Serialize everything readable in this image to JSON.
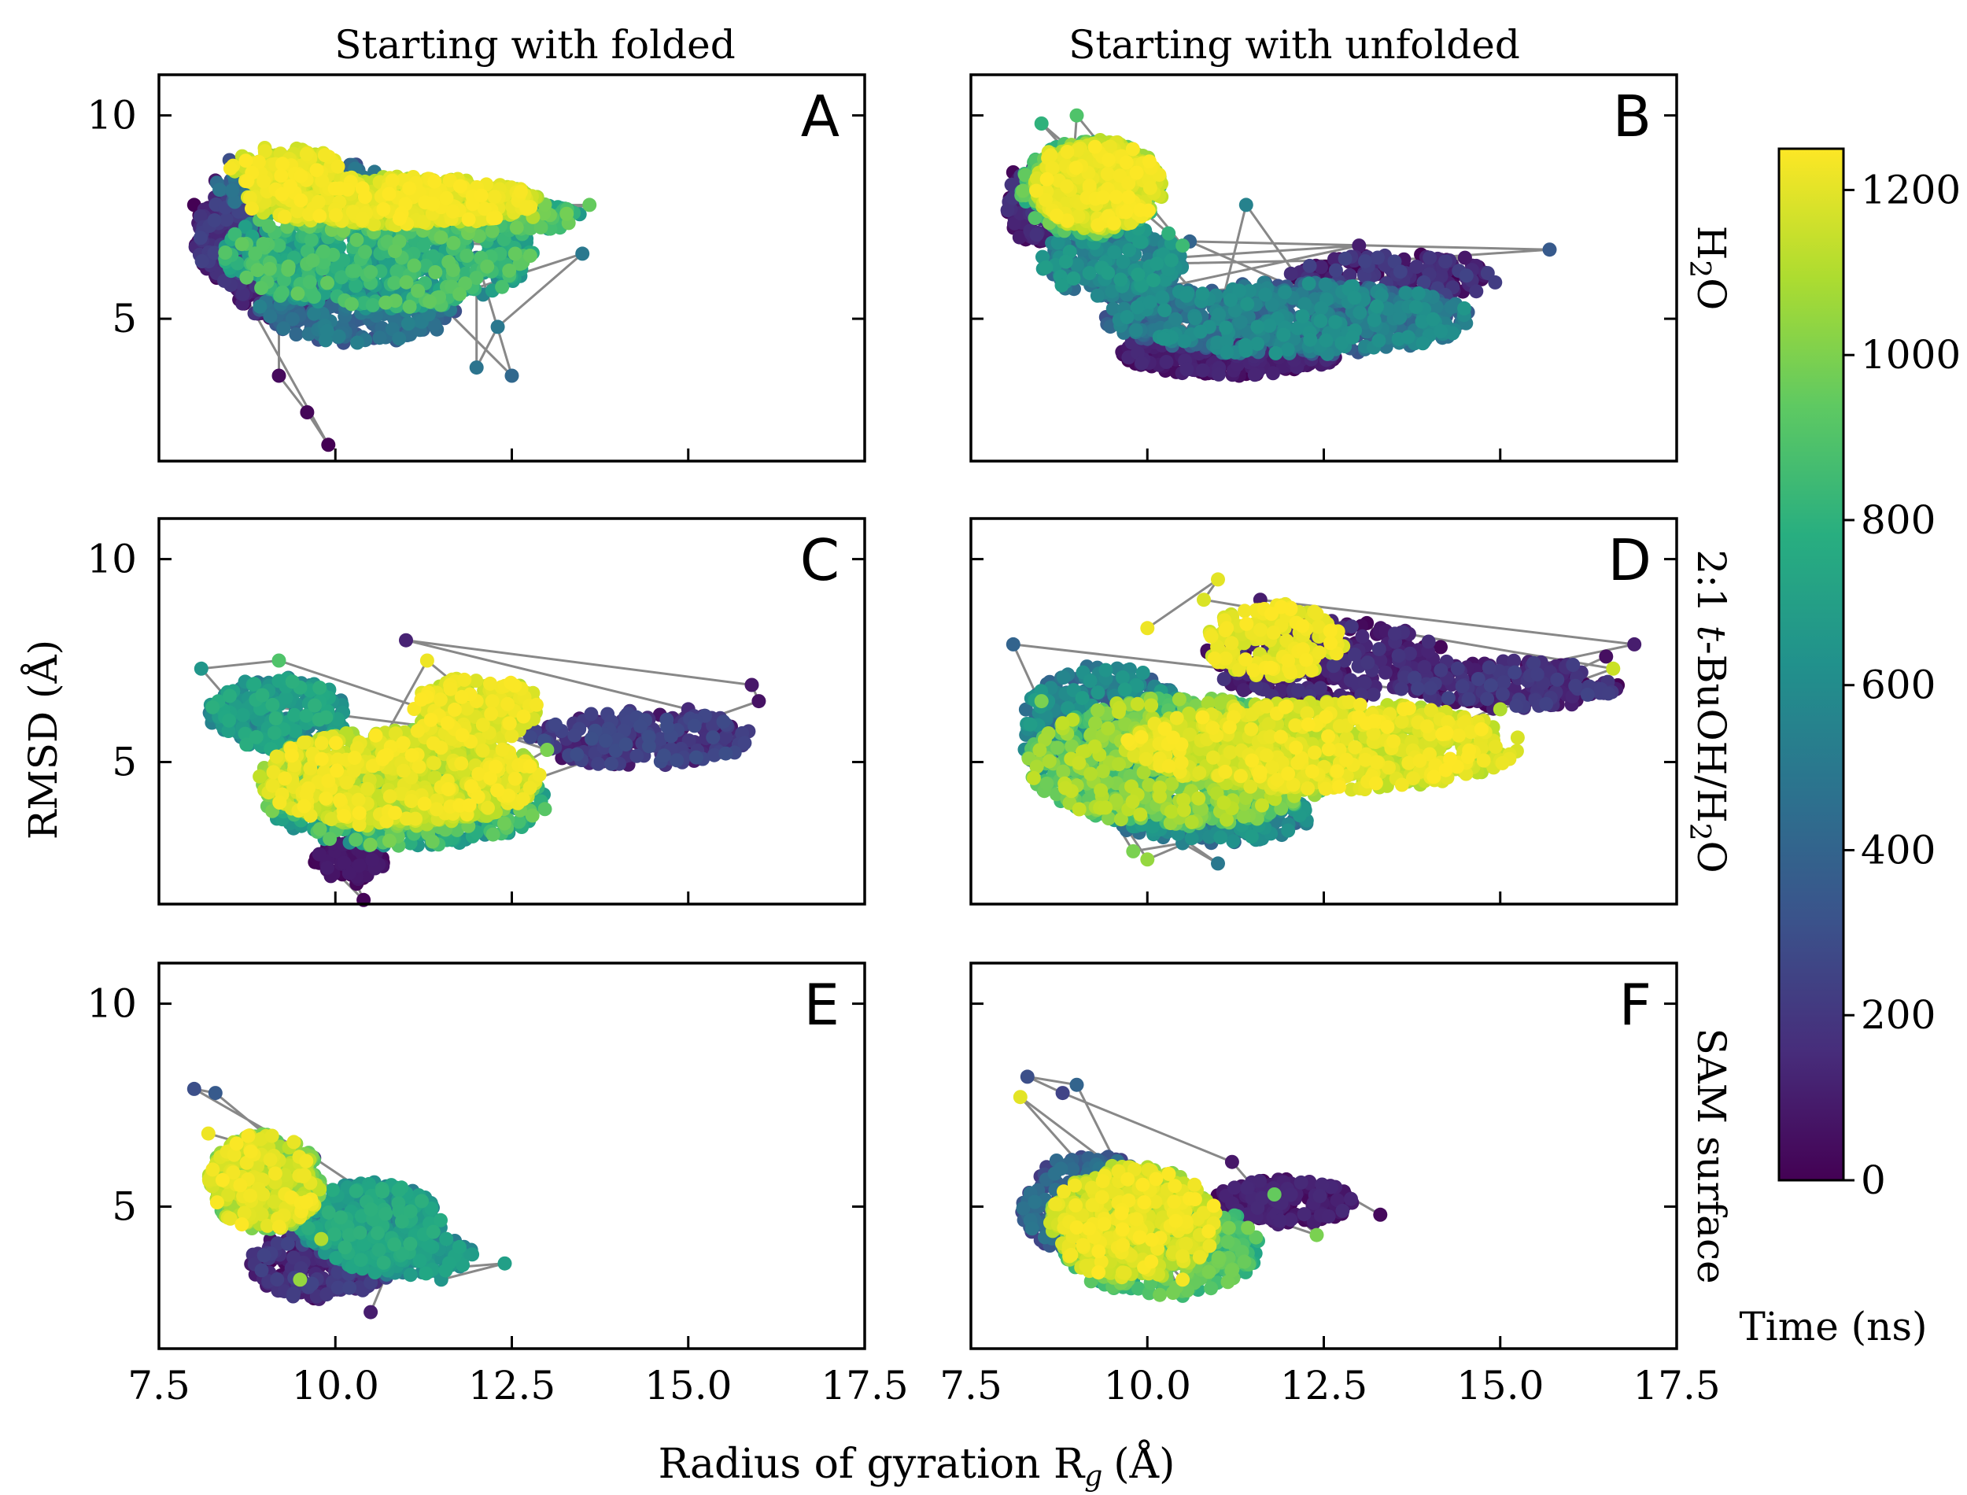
{
  "chart_data": {
    "type": "scatter",
    "xlabel": "Radius of gyration R",
    "xlabel_sub": "g",
    "xlabel_unit": "(Å)",
    "ylabel": "RMSD (Å)",
    "xlim": [
      7.5,
      17.5
    ],
    "ylim": [
      1.5,
      11
    ],
    "xticks": [
      7.5,
      10.0,
      12.5,
      15.0,
      17.5
    ],
    "xtick_labels": [
      "7.5",
      "10.0",
      "12.5",
      "15.0",
      "17.5"
    ],
    "yticks": [
      5,
      10
    ],
    "ytick_labels": [
      "5",
      "10"
    ],
    "column_titles": [
      "Starting with folded",
      "Starting with unfolded"
    ],
    "row_labels": [
      {
        "parts": [
          {
            "t": "H"
          },
          {
            "t": "2",
            "sub": true
          },
          {
            "t": "O"
          }
        ]
      },
      {
        "parts": [
          {
            "t": "2:1 "
          },
          {
            "t": "t",
            "italic": true
          },
          {
            "t": "-BuOH/H"
          },
          {
            "t": "2",
            "sub": true
          },
          {
            "t": "O"
          }
        ]
      },
      {
        "parts": [
          {
            "t": "SAM surface"
          }
        ]
      }
    ],
    "colorbar": {
      "label": "Time (ns)",
      "range": [
        0,
        1250
      ],
      "ticks": [
        0,
        200,
        400,
        600,
        800,
        1000,
        1200
      ],
      "tick_labels": [
        "0",
        "200",
        "400",
        "600",
        "800",
        "1000",
        "1200"
      ],
      "colormap": "viridis"
    },
    "panels": [
      {
        "letter": "A",
        "row": 0,
        "col": 0,
        "seed": 11,
        "points": [
          [
            8.0,
            7.8,
            0
          ],
          [
            8.3,
            8.4,
            80
          ],
          [
            8.6,
            6.8,
            60
          ],
          [
            9.2,
            6.4,
            40
          ],
          [
            9.6,
            5.3,
            120
          ],
          [
            9.2,
            3.6,
            30
          ],
          [
            9.6,
            2.7,
            20
          ],
          [
            9.9,
            1.9,
            0
          ],
          [
            8.5,
            8.9,
            300
          ],
          [
            9.5,
            8.8,
            350
          ],
          [
            11.0,
            8.2,
            300
          ],
          [
            12.0,
            6.5,
            450
          ],
          [
            12.3,
            4.8,
            500
          ],
          [
            12.0,
            3.8,
            480
          ],
          [
            12.5,
            3.6,
            420
          ],
          [
            13.5,
            6.6,
            500
          ],
          [
            11.0,
            5.2,
            550
          ],
          [
            9.0,
            6.5,
            650
          ],
          [
            10.0,
            7.0,
            700
          ],
          [
            11.5,
            7.0,
            750
          ],
          [
            12.5,
            6.8,
            700
          ],
          [
            13.0,
            7.6,
            850
          ],
          [
            13.6,
            7.8,
            950
          ],
          [
            9.0,
            7.7,
            1000
          ],
          [
            10.0,
            7.9,
            1100
          ],
          [
            11.0,
            7.7,
            1200
          ],
          [
            12.0,
            7.4,
            1200
          ],
          [
            9.0,
            9.2,
            1180
          ],
          [
            9.8,
            8.6,
            1230
          ],
          [
            12.8,
            7.5,
            1100
          ]
        ],
        "clusters": [
          {
            "cx": 8.5,
            "cy": 7.0,
            "rx": 0.5,
            "ry": 1.1,
            "t0": 0,
            "t1": 250,
            "n": 200
          },
          {
            "cx": 9.2,
            "cy": 5.9,
            "rx": 0.7,
            "ry": 0.9,
            "t0": 0,
            "t1": 200,
            "n": 160
          },
          {
            "cx": 10.3,
            "cy": 5.2,
            "rx": 1.4,
            "ry": 0.8,
            "t0": 300,
            "t1": 550,
            "n": 260
          },
          {
            "cx": 9.5,
            "cy": 8.3,
            "rx": 1.2,
            "ry": 0.7,
            "t0": 300,
            "t1": 500,
            "n": 200
          },
          {
            "cx": 10.6,
            "cy": 6.6,
            "rx": 2.2,
            "ry": 1.4,
            "t0": 550,
            "t1": 950,
            "n": 700
          },
          {
            "cx": 11.5,
            "cy": 7.5,
            "rx": 2.0,
            "ry": 0.5,
            "t0": 650,
            "t1": 1000,
            "n": 260
          },
          {
            "cx": 10.8,
            "cy": 7.9,
            "rx": 2.1,
            "ry": 0.6,
            "t0": 1080,
            "t1": 1250,
            "n": 620
          },
          {
            "cx": 9.3,
            "cy": 8.7,
            "rx": 0.8,
            "ry": 0.5,
            "t0": 1100,
            "t1": 1250,
            "n": 150
          }
        ]
      },
      {
        "letter": "B",
        "row": 0,
        "col": 1,
        "seed": 23,
        "points": [
          [
            8.1,
            8.6,
            20
          ],
          [
            8.3,
            7.2,
            60
          ],
          [
            8.6,
            6.3,
            100
          ],
          [
            9.5,
            5.5,
            150
          ],
          [
            10.4,
            4.0,
            80
          ],
          [
            11.3,
            3.6,
            50
          ],
          [
            12.3,
            3.9,
            70
          ],
          [
            14.0,
            6.5,
            200
          ],
          [
            14.6,
            6.2,
            150
          ],
          [
            15.7,
            6.7,
            350
          ],
          [
            13.0,
            6.8,
            100
          ],
          [
            14.5,
            6.5,
            80
          ],
          [
            10.6,
            6.9,
            400
          ],
          [
            11.4,
            7.8,
            550
          ],
          [
            12.3,
            5.6,
            450
          ],
          [
            11.0,
            5.0,
            600
          ],
          [
            8.5,
            9.8,
            800
          ],
          [
            9.0,
            10.0,
            900
          ],
          [
            10.3,
            7.1,
            800
          ],
          [
            10.5,
            6.8,
            850
          ],
          [
            9.0,
            8.5,
            1200
          ],
          [
            8.9,
            7.6,
            1100
          ],
          [
            9.5,
            9.0,
            1220
          ],
          [
            10.2,
            8.0,
            1130
          ],
          [
            8.6,
            9.1,
            1180
          ]
        ],
        "clusters": [
          {
            "cx": 8.4,
            "cy": 7.8,
            "rx": 0.4,
            "ry": 1.0,
            "t0": 0,
            "t1": 200,
            "n": 150
          },
          {
            "cx": 11.2,
            "cy": 4.2,
            "rx": 1.6,
            "ry": 0.6,
            "t0": 0,
            "t1": 150,
            "n": 280
          },
          {
            "cx": 13.5,
            "cy": 6.0,
            "rx": 1.5,
            "ry": 0.6,
            "t0": 0,
            "t1": 250,
            "n": 160
          },
          {
            "cx": 12.0,
            "cy": 5.0,
            "rx": 2.6,
            "ry": 0.9,
            "t0": 300,
            "t1": 650,
            "n": 700
          },
          {
            "cx": 9.5,
            "cy": 6.4,
            "rx": 1.0,
            "ry": 0.9,
            "t0": 400,
            "t1": 700,
            "n": 250
          },
          {
            "cx": 9.2,
            "cy": 8.2,
            "rx": 1.0,
            "ry": 1.2,
            "t0": 750,
            "t1": 1000,
            "n": 280
          },
          {
            "cx": 9.3,
            "cy": 8.3,
            "rx": 0.9,
            "ry": 1.1,
            "t0": 1050,
            "t1": 1250,
            "n": 520
          }
        ]
      },
      {
        "letter": "C",
        "row": 1,
        "col": 0,
        "seed": 37,
        "points": [
          [
            10.0,
            2.3,
            0
          ],
          [
            10.3,
            2.0,
            20
          ],
          [
            10.4,
            1.6,
            10
          ],
          [
            9.9,
            2.8,
            50
          ],
          [
            11.0,
            8.0,
            120
          ],
          [
            15.9,
            6.9,
            80
          ],
          [
            16.0,
            6.5,
            60
          ],
          [
            15.0,
            6.3,
            150
          ],
          [
            14.5,
            5.8,
            200
          ],
          [
            13.0,
            5.5,
            250
          ],
          [
            8.1,
            7.3,
            650
          ],
          [
            8.5,
            6.5,
            600
          ],
          [
            9.2,
            7.5,
            900
          ],
          [
            11.3,
            7.5,
            1220
          ],
          [
            12.8,
            6.7,
            1180
          ],
          [
            12.0,
            6.5,
            1240
          ],
          [
            10.5,
            5.0,
            1200
          ],
          [
            10.8,
            4.5,
            1150
          ],
          [
            12.5,
            4.8,
            1100
          ],
          [
            13.0,
            5.3,
            1000
          ]
        ],
        "clusters": [
          {
            "cx": 10.2,
            "cy": 2.6,
            "rx": 0.5,
            "ry": 0.5,
            "t0": 0,
            "t1": 100,
            "n": 120
          },
          {
            "cx": 14.3,
            "cy": 5.6,
            "rx": 1.6,
            "ry": 0.7,
            "t0": 50,
            "t1": 300,
            "n": 220
          },
          {
            "cx": 9.2,
            "cy": 6.2,
            "rx": 1.0,
            "ry": 0.9,
            "t0": 500,
            "t1": 800,
            "n": 260
          },
          {
            "cx": 11.0,
            "cy": 4.0,
            "rx": 2.0,
            "ry": 1.1,
            "t0": 600,
            "t1": 1000,
            "n": 500
          },
          {
            "cx": 10.9,
            "cy": 4.6,
            "rx": 2.0,
            "ry": 1.2,
            "t0": 1000,
            "t1": 1250,
            "n": 800
          },
          {
            "cx": 12.0,
            "cy": 6.3,
            "rx": 0.9,
            "ry": 0.8,
            "t0": 1100,
            "t1": 1250,
            "n": 200
          }
        ]
      },
      {
        "letter": "D",
        "row": 1,
        "col": 1,
        "seed": 53,
        "points": [
          [
            8.1,
            7.9,
            400
          ],
          [
            8.6,
            6.0,
            450
          ],
          [
            9.1,
            4.8,
            500
          ],
          [
            10.5,
            3.0,
            550
          ],
          [
            11.0,
            2.5,
            500
          ],
          [
            11.6,
            9.0,
            100
          ],
          [
            12.0,
            8.5,
            80
          ],
          [
            16.5,
            7.6,
            50
          ],
          [
            16.9,
            7.9,
            100
          ],
          [
            15.0,
            7.2,
            120
          ],
          [
            13.6,
            6.8,
            200
          ],
          [
            14.5,
            6.0,
            60
          ],
          [
            11.0,
            9.5,
            1200
          ],
          [
            10.8,
            9.0,
            1180
          ],
          [
            10.0,
            8.3,
            1220
          ],
          [
            16.6,
            7.3,
            1150
          ],
          [
            15.0,
            6.3,
            1100
          ],
          [
            10.0,
            2.6,
            1050
          ],
          [
            9.8,
            2.8,
            1000
          ],
          [
            8.5,
            6.5,
            1000
          ]
        ],
        "clusters": [
          {
            "cx": 12.5,
            "cy": 7.5,
            "rx": 1.8,
            "ry": 1.0,
            "t0": 0,
            "t1": 200,
            "n": 280
          },
          {
            "cx": 15.2,
            "cy": 6.9,
            "rx": 1.5,
            "ry": 0.6,
            "t0": 0,
            "t1": 250,
            "n": 220
          },
          {
            "cx": 9.4,
            "cy": 5.8,
            "rx": 1.2,
            "ry": 1.6,
            "t0": 350,
            "t1": 700,
            "n": 350
          },
          {
            "cx": 11.0,
            "cy": 3.6,
            "rx": 1.5,
            "ry": 0.6,
            "t0": 400,
            "t1": 700,
            "n": 200
          },
          {
            "cx": 10.5,
            "cy": 5.0,
            "rx": 2.2,
            "ry": 1.6,
            "t0": 800,
            "t1": 1150,
            "n": 800
          },
          {
            "cx": 12.5,
            "cy": 5.4,
            "rx": 2.8,
            "ry": 1.1,
            "t0": 1080,
            "t1": 1250,
            "n": 800
          },
          {
            "cx": 11.8,
            "cy": 8.0,
            "rx": 1.0,
            "ry": 0.9,
            "t0": 1150,
            "t1": 1250,
            "n": 200
          }
        ]
      },
      {
        "letter": "E",
        "row": 2,
        "col": 0,
        "seed": 71,
        "points": [
          [
            8.0,
            7.9,
            300
          ],
          [
            8.3,
            7.8,
            350
          ],
          [
            9.7,
            6.2,
            200
          ],
          [
            10.3,
            5.5,
            180
          ],
          [
            11.0,
            4.5,
            150
          ],
          [
            10.5,
            2.4,
            100
          ],
          [
            12.4,
            3.6,
            700
          ],
          [
            11.5,
            3.2,
            650
          ],
          [
            8.8,
            6.5,
            1200
          ],
          [
            9.3,
            5.5,
            1150
          ],
          [
            9.8,
            4.2,
            1100
          ],
          [
            9.5,
            3.2,
            1050
          ],
          [
            8.2,
            6.8,
            1220
          ]
        ],
        "clusters": [
          {
            "cx": 9.8,
            "cy": 3.6,
            "rx": 1.0,
            "ry": 0.9,
            "t0": 0,
            "t1": 250,
            "n": 250
          },
          {
            "cx": 10.5,
            "cy": 4.6,
            "rx": 1.0,
            "ry": 1.0,
            "t0": 500,
            "t1": 800,
            "n": 350
          },
          {
            "cx": 11.0,
            "cy": 3.8,
            "rx": 1.0,
            "ry": 0.5,
            "t0": 500,
            "t1": 750,
            "n": 150
          },
          {
            "cx": 9.0,
            "cy": 5.6,
            "rx": 0.8,
            "ry": 1.2,
            "t0": 900,
            "t1": 1250,
            "n": 450
          }
        ]
      },
      {
        "letter": "F",
        "row": 2,
        "col": 1,
        "seed": 89,
        "points": [
          [
            8.3,
            8.2,
            300
          ],
          [
            8.8,
            7.8,
            250
          ],
          [
            9.0,
            8.0,
            400
          ],
          [
            12.8,
            5.3,
            50
          ],
          [
            13.3,
            4.8,
            30
          ],
          [
            11.5,
            5.5,
            60
          ],
          [
            11.2,
            6.1,
            80
          ],
          [
            12.4,
            4.3,
            1000
          ],
          [
            11.8,
            5.3,
            950
          ],
          [
            10.5,
            2.8,
            850
          ],
          [
            8.2,
            7.7,
            1200
          ],
          [
            10.5,
            3.2,
            1230
          ],
          [
            9.5,
            6.0,
            1100
          ]
        ],
        "clusters": [
          {
            "cx": 11.9,
            "cy": 5.1,
            "rx": 1.0,
            "ry": 0.6,
            "t0": 0,
            "t1": 150,
            "n": 220
          },
          {
            "cx": 9.2,
            "cy": 5.0,
            "rx": 1.0,
            "ry": 1.3,
            "t0": 200,
            "t1": 500,
            "n": 280
          },
          {
            "cx": 10.2,
            "cy": 4.0,
            "rx": 1.4,
            "ry": 1.2,
            "t0": 700,
            "t1": 1000,
            "n": 400
          },
          {
            "cx": 9.8,
            "cy": 4.6,
            "rx": 1.2,
            "ry": 1.4,
            "t0": 1000,
            "t1": 1250,
            "n": 600
          }
        ]
      }
    ]
  }
}
